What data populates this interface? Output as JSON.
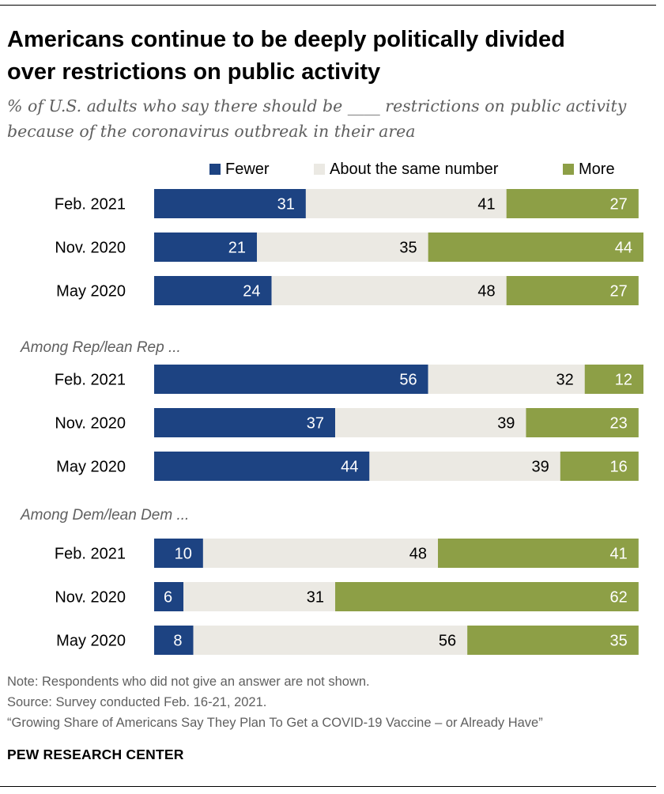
{
  "header": {
    "title_line1": "Americans continue to be deeply politically divided",
    "title_line2": "over restrictions on public activity",
    "subtitle_line1": "% of U.S. adults who say there should be ____ restrictions on public activity",
    "subtitle_line2": "because of the coronavirus outbreak in their area"
  },
  "legend": {
    "fewer": "Fewer",
    "same": "About the same number",
    "more": "More"
  },
  "colors": {
    "fewer": "#1d4382",
    "same": "#ebe9e3",
    "more": "#8d9f46"
  },
  "chart_data": {
    "type": "stacked-bar",
    "orientation": "horizontal",
    "unit": "%",
    "series_names": [
      "Fewer",
      "About the same number",
      "More"
    ],
    "groups": [
      {
        "label": "",
        "rows": [
          {
            "label": "Feb. 2021",
            "fewer": 31,
            "same": 41,
            "more": 27
          },
          {
            "label": "Nov. 2020",
            "fewer": 21,
            "same": 35,
            "more": 44
          },
          {
            "label": "May 2020",
            "fewer": 24,
            "same": 48,
            "more": 27
          }
        ]
      },
      {
        "label": "Among Rep/lean Rep ...",
        "rows": [
          {
            "label": "Feb. 2021",
            "fewer": 56,
            "same": 32,
            "more": 12
          },
          {
            "label": "Nov. 2020",
            "fewer": 37,
            "same": 39,
            "more": 23
          },
          {
            "label": "May 2020",
            "fewer": 44,
            "same": 39,
            "more": 16
          }
        ]
      },
      {
        "label": "Among Dem/lean Dem ...",
        "rows": [
          {
            "label": "Feb. 2021",
            "fewer": 10,
            "same": 48,
            "more": 41
          },
          {
            "label": "Nov. 2020",
            "fewer": 6,
            "same": 31,
            "more": 62
          },
          {
            "label": "May 2020",
            "fewer": 8,
            "same": 56,
            "more": 35
          }
        ]
      }
    ]
  },
  "footer": {
    "note": "Note: Respondents who did not give an answer are not shown.",
    "source": "Source: Survey conducted Feb. 16-21, 2021.",
    "report": "“Growing Share of Americans Say They Plan To Get a COVID-19 Vaccine – or Already Have”",
    "brand": "PEW RESEARCH CENTER"
  }
}
